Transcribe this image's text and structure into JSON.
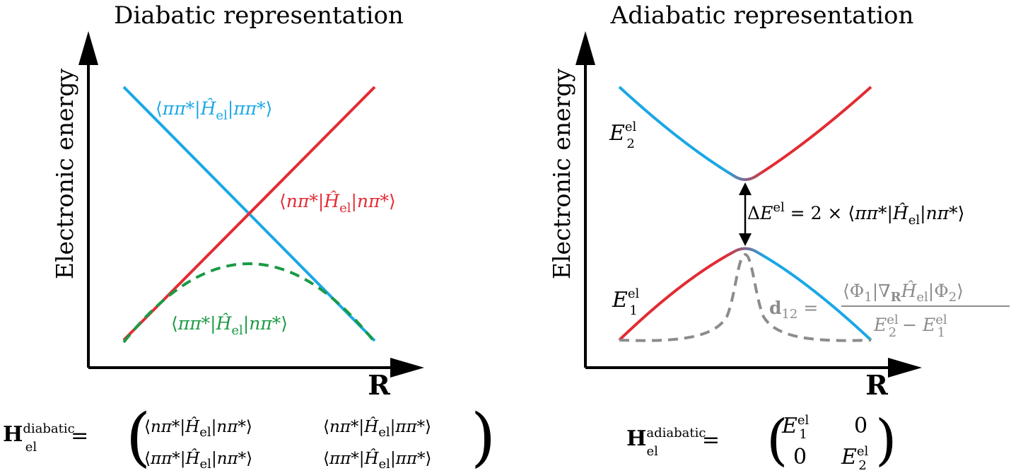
{
  "left_panel": {
    "title": "Diabatic representation",
    "ylabel": "Electronic energy",
    "xlabel": "R",
    "label_pp": "⟨ππ*|Ĥel|ππ*⟩",
    "label_np": "⟨nπ*|Ĥel|nπ*⟩",
    "label_coupling": "⟨ππ*|Ĥel|nπ*⟩"
  },
  "right_panel": {
    "title": "Adiabatic representation",
    "ylabel": "Electronic energy",
    "xlabel": "R",
    "E2": "E2el",
    "E1": "E1el",
    "gap": "ΔEel = 2 × ⟨ππ*|Ĥel|nπ*⟩",
    "d12": "d12 = ⟨Φ1|∇RĤel|Φ2⟩ / (E2el − E1el)"
  },
  "matrix_diabatic": {
    "lhs": "Hel^diabatic =",
    "row1": [
      "⟨nπ*|Ĥel|nπ*⟩",
      "⟨nπ*|Ĥel|ππ*⟩"
    ],
    "row2": [
      "⟨ππ*|Ĥel|nπ*⟩",
      "⟨ππ*|Ĥel|ππ*⟩"
    ]
  },
  "matrix_adiabatic": {
    "lhs": "Hel^adiabatic =",
    "row1": [
      "E1el",
      "0"
    ],
    "row2": [
      "0",
      "E2el"
    ]
  },
  "colors": {
    "pipi_blue": "#1aa7e6",
    "npi_red": "#e32b33",
    "coupling_green": "#1a9a45",
    "nac_gray": "#8c8c8c",
    "axis": "#000000"
  }
}
